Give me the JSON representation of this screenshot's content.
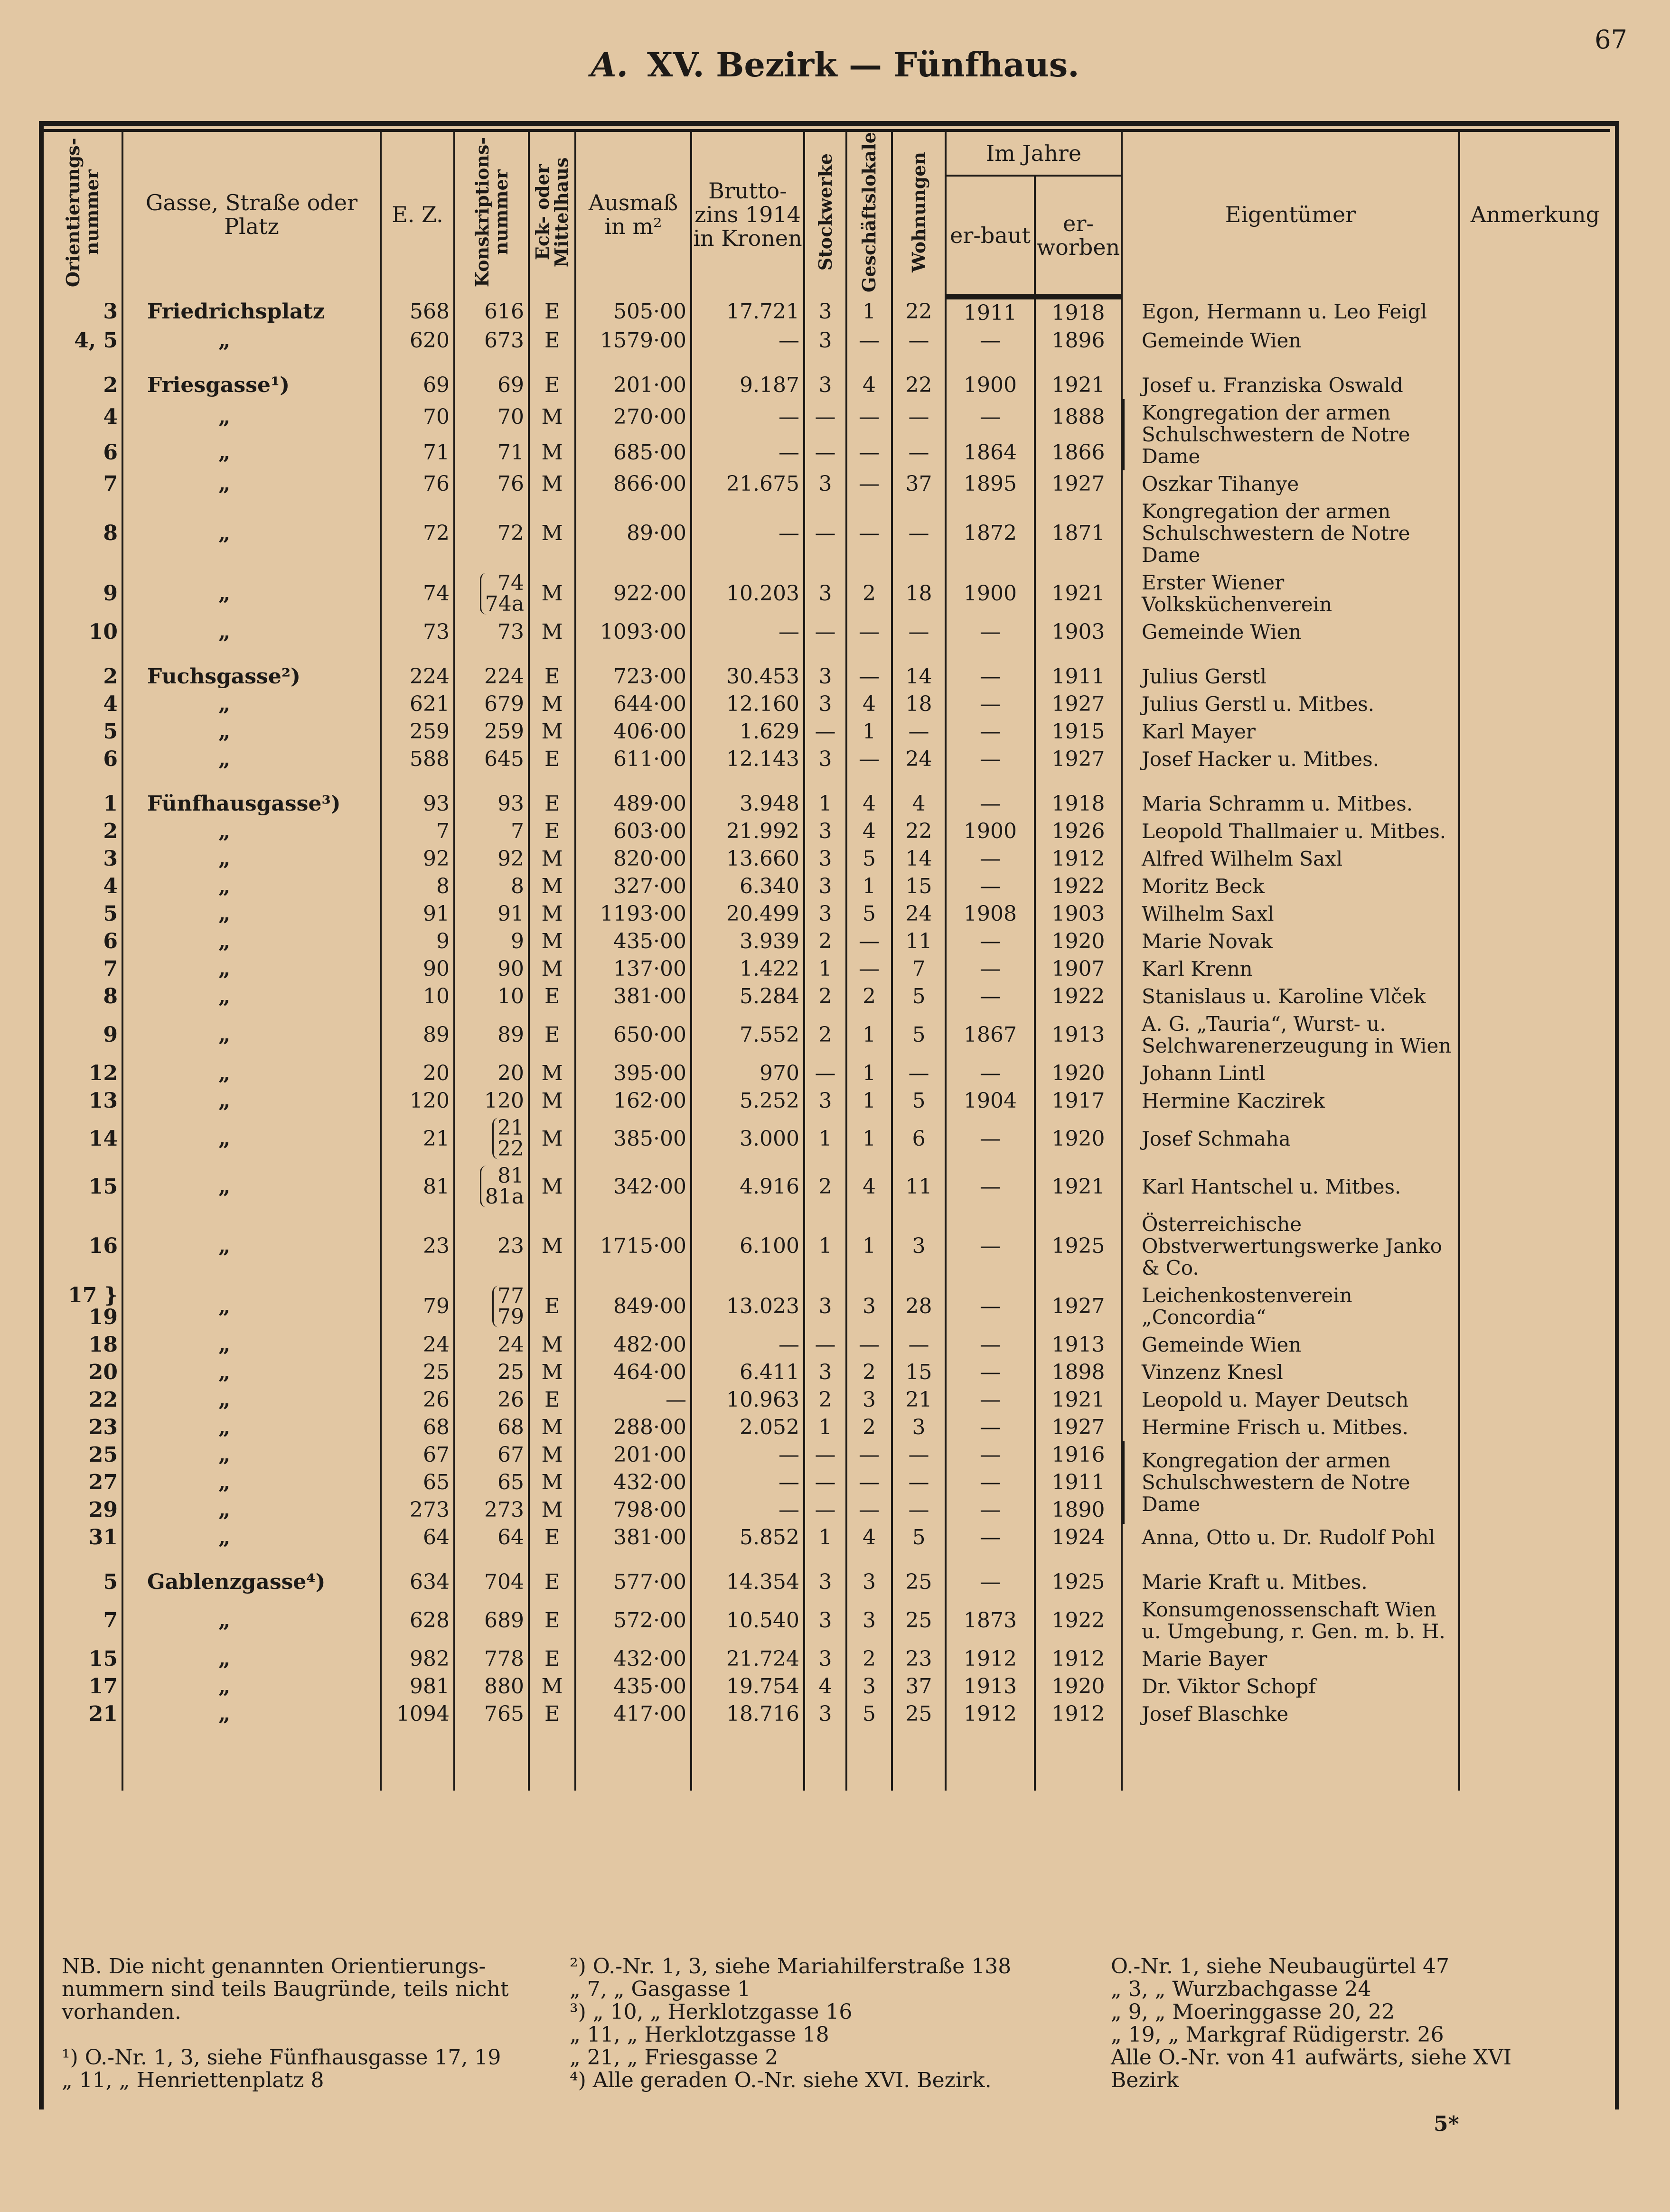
{
  "page_number": "67",
  "title_letter": "A.",
  "title": "XV. Bezirk — Fünfhaus.",
  "headers": {
    "orient": "Orientierungs-nummer",
    "gasse": "Gasse, Straße oder Platz",
    "ez": "E. Z.",
    "konskr": "Konskriptions-nummer",
    "eck": "Eck- oder Mittelhaus",
    "ausmass": "Ausmaß in m²",
    "brutto": "Brutto-zins 1914 in Kronen",
    "stock": "Stockwerke",
    "gesch": "Geschäftslokale",
    "wohn": "Wohnungen",
    "im_jahre": "Im Jahre",
    "erbaut": "er-baut",
    "erworben": "er-worben",
    "eigentuemer": "Eigentümer",
    "anmerkung": "Anmerkung"
  },
  "rows": [
    {
      "o": "3",
      "s": "Friedrichsplatz",
      "ez": "568",
      "kn": "616",
      "e": "E",
      "a": "505·00",
      "b": "17.721",
      "st": "3",
      "g": "1",
      "w": "22",
      "eb": "1911",
      "ew": "1918",
      "ow": "Egon, Hermann u. Leo Feigl"
    },
    {
      "o": "4, 5",
      "s": "„",
      "ez": "620",
      "kn": "673",
      "e": "E",
      "a": "1579·00",
      "b": "—",
      "st": "3",
      "g": "—",
      "w": "—",
      "eb": "—",
      "ew": "1896",
      "ow": "Gemeinde Wien"
    },
    {
      "gap": true
    },
    {
      "o": "2",
      "s": "Friesgasse¹)",
      "ez": "69",
      "kn": "69",
      "e": "E",
      "a": "201·00",
      "b": "9.187",
      "st": "3",
      "g": "4",
      "w": "22",
      "eb": "1900",
      "ew": "1921",
      "ow": "Josef u. Franziska Oswald"
    },
    {
      "o": "4",
      "s": "„",
      "ez": "70",
      "kn": "70",
      "e": "M",
      "a": "270·00",
      "b": "—",
      "st": "—",
      "g": "—",
      "w": "—",
      "eb": "—",
      "ew": "1888",
      "ow": "Kongregation der armen Schulschwestern de Notre Dame",
      "span": 2
    },
    {
      "o": "6",
      "s": "„",
      "ez": "71",
      "kn": "71",
      "e": "M",
      "a": "685·00",
      "b": "—",
      "st": "—",
      "g": "—",
      "w": "—",
      "eb": "1864",
      "ew": "1866",
      "skip": true
    },
    {
      "o": "7",
      "s": "„",
      "ez": "76",
      "kn": "76",
      "e": "M",
      "a": "866·00",
      "b": "21.675",
      "st": "3",
      "g": "—",
      "w": "37",
      "eb": "1895",
      "ew": "1927",
      "ow": "Oszkar Tihanye"
    },
    {
      "o": "8",
      "s": "„",
      "ez": "72",
      "kn": "72",
      "e": "M",
      "a": "89·00",
      "b": "—",
      "st": "—",
      "g": "—",
      "w": "—",
      "eb": "1872",
      "ew": "1871",
      "ow": "Kongregation der armen Schulschwestern de Notre Dame"
    },
    {
      "o": "9",
      "s": "„",
      "ez": "74",
      "kn": "74",
      "kn2": "74a",
      "e": "M",
      "a": "922·00",
      "b": "10.203",
      "st": "3",
      "g": "2",
      "w": "18",
      "eb": "1900",
      "ew": "1921",
      "ow": "Erster Wiener Volksküchenverein"
    },
    {
      "o": "10",
      "s": "„",
      "ez": "73",
      "kn": "73",
      "e": "M",
      "a": "1093·00",
      "b": "—",
      "st": "—",
      "g": "—",
      "w": "—",
      "eb": "—",
      "ew": "1903",
      "ow": "Gemeinde Wien"
    },
    {
      "gap": true
    },
    {
      "o": "2",
      "s": "Fuchsgasse²)",
      "ez": "224",
      "kn": "224",
      "e": "E",
      "a": "723·00",
      "b": "30.453",
      "st": "3",
      "g": "—",
      "w": "14",
      "eb": "—",
      "ew": "1911",
      "ow": "Julius Gerstl"
    },
    {
      "o": "4",
      "s": "„",
      "ez": "621",
      "kn": "679",
      "e": "M",
      "a": "644·00",
      "b": "12.160",
      "st": "3",
      "g": "4",
      "w": "18",
      "eb": "—",
      "ew": "1927",
      "ow": "Julius Gerstl u. Mitbes."
    },
    {
      "o": "5",
      "s": "„",
      "ez": "259",
      "kn": "259",
      "e": "M",
      "a": "406·00",
      "b": "1.629",
      "st": "—",
      "g": "1",
      "w": "—",
      "eb": "—",
      "ew": "1915",
      "ow": "Karl Mayer"
    },
    {
      "o": "6",
      "s": "„",
      "ez": "588",
      "kn": "645",
      "e": "E",
      "a": "611·00",
      "b": "12.143",
      "st": "3",
      "g": "—",
      "w": "24",
      "eb": "—",
      "ew": "1927",
      "ow": "Josef Hacker u. Mitbes."
    },
    {
      "gap": true
    },
    {
      "o": "1",
      "s": "Fünfhausgasse³)",
      "ez": "93",
      "kn": "93",
      "e": "E",
      "a": "489·00",
      "b": "3.948",
      "st": "1",
      "g": "4",
      "w": "4",
      "eb": "—",
      "ew": "1918",
      "ow": "Maria Schramm u. Mitbes."
    },
    {
      "o": "2",
      "s": "„",
      "ez": "7",
      "kn": "7",
      "e": "E",
      "a": "603·00",
      "b": "21.992",
      "st": "3",
      "g": "4",
      "w": "22",
      "eb": "1900",
      "ew": "1926",
      "ow": "Leopold Thallmaier u. Mitbes."
    },
    {
      "o": "3",
      "s": "„",
      "ez": "92",
      "kn": "92",
      "e": "M",
      "a": "820·00",
      "b": "13.660",
      "st": "3",
      "g": "5",
      "w": "14",
      "eb": "—",
      "ew": "1912",
      "ow": "Alfred Wilhelm Saxl"
    },
    {
      "o": "4",
      "s": "„",
      "ez": "8",
      "kn": "8",
      "e": "M",
      "a": "327·00",
      "b": "6.340",
      "st": "3",
      "g": "1",
      "w": "15",
      "eb": "—",
      "ew": "1922",
      "ow": "Moritz Beck"
    },
    {
      "o": "5",
      "s": "„",
      "ez": "91",
      "kn": "91",
      "e": "M",
      "a": "1193·00",
      "b": "20.499",
      "st": "3",
      "g": "5",
      "w": "24",
      "eb": "1908",
      "ew": "1903",
      "ow": "Wilhelm Saxl"
    },
    {
      "o": "6",
      "s": "„",
      "ez": "9",
      "kn": "9",
      "e": "M",
      "a": "435·00",
      "b": "3.939",
      "st": "2",
      "g": "—",
      "w": "11",
      "eb": "—",
      "ew": "1920",
      "ow": "Marie Novak"
    },
    {
      "o": "7",
      "s": "„",
      "ez": "90",
      "kn": "90",
      "e": "M",
      "a": "137·00",
      "b": "1.422",
      "st": "1",
      "g": "—",
      "w": "7",
      "eb": "—",
      "ew": "1907",
      "ow": "Karl Krenn"
    },
    {
      "o": "8",
      "s": "„",
      "ez": "10",
      "kn": "10",
      "e": "E",
      "a": "381·00",
      "b": "5.284",
      "st": "2",
      "g": "2",
      "w": "5",
      "eb": "—",
      "ew": "1922",
      "ow": "Stanislaus u. Karoline Vlček"
    },
    {
      "o": "9",
      "s": "„",
      "ez": "89",
      "kn": "89",
      "e": "E",
      "a": "650·00",
      "b": "7.552",
      "st": "2",
      "g": "1",
      "w": "5",
      "eb": "1867",
      "ew": "1913",
      "ow": "A. G. „Tauria“, Wurst- u. Selchwarenerzeugung in Wien"
    },
    {
      "o": "12",
      "s": "„",
      "ez": "20",
      "kn": "20",
      "e": "M",
      "a": "395·00",
      "b": "970",
      "st": "—",
      "g": "1",
      "w": "—",
      "eb": "—",
      "ew": "1920",
      "ow": "Johann Lintl"
    },
    {
      "o": "13",
      "s": "„",
      "ez": "120",
      "kn": "120",
      "e": "M",
      "a": "162·00",
      "b": "5.252",
      "st": "3",
      "g": "1",
      "w": "5",
      "eb": "1904",
      "ew": "1917",
      "ow": "Hermine Kaczirek"
    },
    {
      "o": "14",
      "s": "„",
      "ez": "21",
      "kn": "21",
      "kn2": "22",
      "e": "M",
      "a": "385·00",
      "b": "3.000",
      "st": "1",
      "g": "1",
      "w": "6",
      "eb": "—",
      "ew": "1920",
      "ow": "Josef Schmaha"
    },
    {
      "o": "15",
      "s": "„",
      "ez": "81",
      "kn": "81",
      "kn2": "81a",
      "e": "M",
      "a": "342·00",
      "b": "4.916",
      "st": "2",
      "g": "4",
      "w": "11",
      "eb": "—",
      "ew": "1921",
      "ow": "Karl Hantschel u. Mitbes."
    },
    {
      "o": "16",
      "s": "„",
      "ez": "23",
      "kn": "23",
      "e": "M",
      "a": "1715·00",
      "b": "6.100",
      "st": "1",
      "g": "1",
      "w": "3",
      "eb": "—",
      "ew": "1925",
      "ow": "Österreichische Obstverwertungswerke Janko & Co."
    },
    {
      "o": "17 } 19",
      "s": "„",
      "ez": "79",
      "kn": "77",
      "kn2": "79",
      "e": "E",
      "a": "849·00",
      "b": "13.023",
      "st": "3",
      "g": "3",
      "w": "28",
      "eb": "—",
      "ew": "1927",
      "ow": "Leichenkostenverein „Concordia“"
    },
    {
      "o": "18",
      "s": "„",
      "ez": "24",
      "kn": "24",
      "e": "M",
      "a": "482·00",
      "b": "—",
      "st": "—",
      "g": "—",
      "w": "—",
      "eb": "—",
      "ew": "1913",
      "ow": "Gemeinde Wien"
    },
    {
      "o": "20",
      "s": "„",
      "ez": "25",
      "kn": "25",
      "e": "M",
      "a": "464·00",
      "b": "6.411",
      "st": "3",
      "g": "2",
      "w": "15",
      "eb": "—",
      "ew": "1898",
      "ow": "Vinzenz Knesl"
    },
    {
      "o": "22",
      "s": "„",
      "ez": "26",
      "kn": "26",
      "e": "E",
      "a": "—",
      "b": "10.963",
      "st": "2",
      "g": "3",
      "w": "21",
      "eb": "—",
      "ew": "1921",
      "ow": "Leopold u. Mayer Deutsch"
    },
    {
      "o": "23",
      "s": "„",
      "ez": "68",
      "kn": "68",
      "e": "M",
      "a": "288·00",
      "b": "2.052",
      "st": "1",
      "g": "2",
      "w": "3",
      "eb": "—",
      "ew": "1927",
      "ow": "Hermine Frisch u. Mitbes."
    },
    {
      "o": "25",
      "s": "„",
      "ez": "67",
      "kn": "67",
      "e": "M",
      "a": "201·00",
      "b": "—",
      "st": "—",
      "g": "—",
      "w": "—",
      "eb": "—",
      "ew": "1916",
      "ow": "Kongregation der armen Schulschwestern de Notre Dame",
      "span": 3
    },
    {
      "o": "27",
      "s": "„",
      "ez": "65",
      "kn": "65",
      "e": "M",
      "a": "432·00",
      "b": "—",
      "st": "—",
      "g": "—",
      "w": "—",
      "eb": "—",
      "ew": "1911",
      "skip": true
    },
    {
      "o": "29",
      "s": "„",
      "ez": "273",
      "kn": "273",
      "e": "M",
      "a": "798·00",
      "b": "—",
      "st": "—",
      "g": "—",
      "w": "—",
      "eb": "—",
      "ew": "1890",
      "skip": true
    },
    {
      "o": "31",
      "s": "„",
      "ez": "64",
      "kn": "64",
      "e": "E",
      "a": "381·00",
      "b": "5.852",
      "st": "1",
      "g": "4",
      "w": "5",
      "eb": "—",
      "ew": "1924",
      "ow": "Anna, Otto u. Dr. Rudolf Pohl"
    },
    {
      "gap": true
    },
    {
      "o": "5",
      "s": "Gablenzgasse⁴)",
      "ez": "634",
      "kn": "704",
      "e": "E",
      "a": "577·00",
      "b": "14.354",
      "st": "3",
      "g": "3",
      "w": "25",
      "eb": "—",
      "ew": "1925",
      "ow": "Marie Kraft u. Mitbes."
    },
    {
      "o": "7",
      "s": "„",
      "ez": "628",
      "kn": "689",
      "e": "E",
      "a": "572·00",
      "b": "10.540",
      "st": "3",
      "g": "3",
      "w": "25",
      "eb": "1873",
      "ew": "1922",
      "ow": "Konsumgenossenschaft Wien u. Umgebung, r. Gen. m. b. H."
    },
    {
      "o": "15",
      "s": "„",
      "ez": "982",
      "kn": "778",
      "e": "E",
      "a": "432·00",
      "b": "21.724",
      "st": "3",
      "g": "2",
      "w": "23",
      "eb": "1912",
      "ew": "1912",
      "ow": "Marie Bayer"
    },
    {
      "o": "17",
      "s": "„",
      "ez": "981",
      "kn": "880",
      "e": "M",
      "a": "435·00",
      "b": "19.754",
      "st": "4",
      "g": "3",
      "w": "37",
      "eb": "1913",
      "ew": "1920",
      "ow": "Dr. Viktor Schopf"
    },
    {
      "o": "21",
      "s": "„",
      "ez": "1094",
      "kn": "765",
      "e": "E",
      "a": "417·00",
      "b": "18.716",
      "st": "3",
      "g": "5",
      "w": "25",
      "eb": "1912",
      "ew": "1912",
      "ow": "Josef Blaschke"
    }
  ],
  "notes": {
    "col1": [
      "NB. Die nicht genannten Orientierungs-nummern sind teils Baugründe, teils nicht vorhanden.",
      "",
      "¹) O.-Nr. 1, 3,  siehe  Fünfhausgasse 17, 19",
      "„   11,   „   Henriettenplatz 8"
    ],
    "col2": [
      "²) O.-Nr. 1, 3,  siehe  Mariahilferstraße 138",
      "„   7,   „   Gasgasse 1",
      "³) „  10,  „  Herklotzgasse 16",
      "„  11,  „  Herklotzgasse 18",
      "„  21,  „  Friesgasse 2",
      "⁴) Alle geraden O.-Nr. siehe XVI. Bezirk."
    ],
    "col3": [
      "O.-Nr.  1,  siehe  Neubaugürtel 47",
      "„   3,  „  Wurzbachgasse 24",
      "„   9,  „  Moeringgasse 20, 22",
      "„  19,  „  Markgraf Rüdigerstr. 26",
      "Alle O.-Nr. von 41 aufwärts, siehe XVI Bezirk"
    ]
  },
  "signature": "5*"
}
